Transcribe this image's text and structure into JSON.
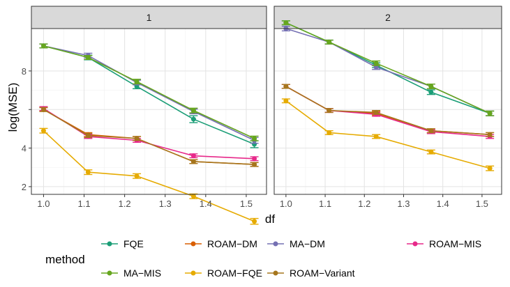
{
  "chart_data": {
    "type": "line",
    "facet_layout": "1x2",
    "xlabel": "df",
    "ylabel": "log(MSE)",
    "xlim": [
      0.97,
      1.55
    ],
    "ylim": [
      1.6,
      10.2
    ],
    "x_ticks": [
      1.0,
      1.1,
      1.2,
      1.3,
      1.4,
      1.5
    ],
    "x_tick_labels": [
      "1.0",
      "1.1",
      "1.2",
      "1.3",
      "1.4",
      "1.5"
    ],
    "y_ticks": [
      2,
      4,
      6,
      8
    ],
    "y_tick_labels": [
      "2",
      "4",
      "",
      "8"
    ],
    "x": [
      1.0,
      1.11,
      1.23,
      1.37,
      1.52
    ],
    "legend_title": "method",
    "legend_position": "bottom",
    "facets": [
      {
        "title": "1",
        "series": [
          {
            "name": "FQE",
            "color": "#1B9E77",
            "values": [
              9.3,
              8.7,
              7.2,
              5.5,
              4.2
            ],
            "error": [
              0.1,
              0.12,
              0.12,
              0.18,
              0.18
            ]
          },
          {
            "name": "ROAM−DM",
            "color": "#D95F02",
            "values": [
              6.0,
              4.7,
              4.5,
              3.3,
              3.15
            ],
            "error": [
              0.1,
              0.1,
              0.1,
              0.1,
              0.1
            ]
          },
          {
            "name": "MA−DM",
            "color": "#7570B3",
            "values": [
              9.3,
              8.8,
              7.4,
              5.9,
              4.4
            ],
            "error": [
              0.1,
              0.12,
              0.12,
              0.12,
              0.15
            ]
          },
          {
            "name": "ROAM−MIS",
            "color": "#E7298A",
            "values": [
              6.05,
              4.6,
              4.4,
              3.6,
              3.45
            ],
            "error": [
              0.1,
              0.1,
              0.1,
              0.1,
              0.1
            ]
          },
          {
            "name": "MA−MIS",
            "color": "#66A61E",
            "values": [
              9.3,
              8.7,
              7.45,
              5.95,
              4.5
            ],
            "error": [
              0.1,
              0.1,
              0.12,
              0.12,
              0.12
            ]
          },
          {
            "name": "ROAM−FQE",
            "color": "#E6AB02",
            "values": [
              4.9,
              2.75,
              2.55,
              1.5,
              0.2
            ],
            "error": [
              0.12,
              0.12,
              0.12,
              0.12,
              0.15
            ]
          },
          {
            "name": "ROAM−Variant",
            "color": "#A6761D",
            "values": [
              6.0,
              4.65,
              4.5,
              3.3,
              3.15
            ],
            "error": [
              0.1,
              0.1,
              0.1,
              0.1,
              0.1
            ]
          }
        ]
      },
      {
        "title": "2",
        "series": [
          {
            "name": "FQE",
            "color": "#1B9E77",
            "values": [
              10.5,
              9.5,
              8.3,
              6.9,
              5.8
            ],
            "error": [
              0.1,
              0.1,
              0.12,
              0.12,
              0.12
            ]
          },
          {
            "name": "ROAM−DM",
            "color": "#D95F02",
            "values": [
              7.2,
              5.95,
              5.8,
              4.9,
              4.7
            ],
            "error": [
              0.1,
              0.1,
              0.1,
              0.1,
              0.1
            ]
          },
          {
            "name": "MA−DM",
            "color": "#7570B3",
            "values": [
              10.2,
              9.5,
              8.2,
              7.2,
              5.8
            ],
            "error": [
              0.12,
              0.1,
              0.12,
              0.12,
              0.12
            ]
          },
          {
            "name": "ROAM−MIS",
            "color": "#E7298A",
            "values": [
              7.2,
              5.95,
              5.75,
              4.85,
              4.6
            ],
            "error": [
              0.1,
              0.1,
              0.1,
              0.1,
              0.1
            ]
          },
          {
            "name": "MA−MIS",
            "color": "#66A61E",
            "values": [
              10.5,
              9.5,
              8.4,
              7.2,
              5.8
            ],
            "error": [
              0.1,
              0.1,
              0.12,
              0.12,
              0.12
            ]
          },
          {
            "name": "ROAM−FQE",
            "color": "#E6AB02",
            "values": [
              6.45,
              4.8,
              4.6,
              3.8,
              2.95
            ],
            "error": [
              0.1,
              0.1,
              0.1,
              0.1,
              0.12
            ]
          },
          {
            "name": "ROAM−Variant",
            "color": "#A6761D",
            "values": [
              7.2,
              5.95,
              5.85,
              4.9,
              4.7
            ],
            "error": [
              0.1,
              0.1,
              0.1,
              0.1,
              0.1
            ]
          }
        ]
      }
    ],
    "legend": [
      {
        "name": "FQE",
        "color": "#1B9E77"
      },
      {
        "name": "ROAM−DM",
        "color": "#D95F02"
      },
      {
        "name": "MA−DM",
        "color": "#7570B3"
      },
      {
        "name": "ROAM−MIS",
        "color": "#E7298A"
      },
      {
        "name": "MA−MIS",
        "color": "#66A61E"
      },
      {
        "name": "ROAM−FQE",
        "color": "#E6AB02"
      },
      {
        "name": "ROAM−Variant",
        "color": "#A6761D"
      }
    ]
  }
}
